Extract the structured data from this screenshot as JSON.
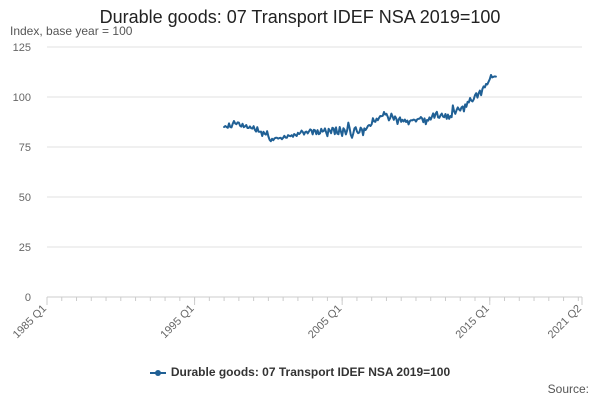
{
  "chart_data": {
    "type": "line",
    "title": "Durable goods: 07 Transport IDEF NSA 2019=100",
    "ylabel": "Index, base year = 100",
    "xlabel": "",
    "ylim": [
      0,
      125
    ],
    "yticks": [
      0,
      25,
      50,
      75,
      100,
      125
    ],
    "xlim": [
      "1985 Q1",
      "2021 Q2"
    ],
    "xticks": [
      "1985 Q1",
      "1995 Q1",
      "2005 Q1",
      "2015 Q1",
      "2021 Q2"
    ],
    "grid": true,
    "legend_position": "bottom",
    "series": [
      {
        "name": "Durable goods: 07 Transport IDEF NSA 2019=100",
        "color": "#206095",
        "frequency": "monthly",
        "start": "1997-01",
        "values": [
          85,
          85.5,
          85,
          84.6,
          86.8,
          85,
          84.8,
          86.6,
          88,
          86.8,
          86.4,
          87.3,
          87.2,
          85.6,
          85.2,
          86.6,
          84.9,
          85.3,
          86,
          84.5,
          84.5,
          85.3,
          84.4,
          84.2,
          85.4,
          83.6,
          82.7,
          84.9,
          82.6,
          82.6,
          82.7,
          80.5,
          82.6,
          81.6,
          81.2,
          82.9,
          80.3,
          78.6,
          77.9,
          79.1,
          78.4,
          79.3,
          79.6,
          79.6,
          79.2,
          79.5,
          79.6,
          78.9,
          79.6,
          80.6,
          79.7,
          79.6,
          80.9,
          80.6,
          80.4,
          80.9,
          80.1,
          81.5,
          81,
          80.5,
          82.1,
          81.5,
          82.1,
          83.2,
          82.5,
          81.2,
          82.5,
          82.7,
          81.8,
          82.8,
          83.8,
          83.4,
          81.3,
          83.6,
          83.3,
          81.4,
          83.4,
          81.4,
          81.8,
          84.1,
          82.7,
          83,
          84.3,
          82.3,
          80.4,
          84.1,
          83.2,
          81.9,
          84.6,
          84.3,
          81.4,
          84.8,
          81.7,
          81.4,
          85,
          82.7,
          80.5,
          84.4,
          83.5,
          81.3,
          83.2,
          87.2,
          84.6,
          81.1,
          79.6,
          81.7,
          84.3,
          84.9,
          82.8,
          81.9,
          82.3,
          84.7,
          83.9,
          80.9,
          84.3,
          83.5,
          84.4,
          85.6,
          86,
          85.5,
          86.4,
          89.4,
          87.8,
          87.6,
          89.2,
          88.4,
          89.6,
          90.5,
          90.4,
          90.6,
          92.5,
          91.2,
          91.6,
          90.2,
          88.3,
          89.4,
          91.7,
          90.2,
          88.6,
          90.3,
          89.2,
          86.5,
          88.8,
          89.8,
          87.6,
          88.6,
          87.8,
          88.7,
          87.5,
          88.2,
          86.3,
          87.9,
          88.4,
          88.3,
          88.7,
          88.6,
          87.7,
          88.8,
          89.1,
          89.2,
          90,
          89.3,
          87.4,
          89.3,
          86.4,
          88.5,
          88.2,
          89.8,
          88.7,
          90.2,
          91.8,
          89.6,
          91.7,
          92.6,
          89.8,
          89.6,
          90.9,
          91.7,
          90.2,
          89.9,
          91.5,
          89.1,
          91.2,
          89.1,
          90.5,
          89.9,
          95.8,
          92.9,
          91.6,
          93.4,
          94.8,
          93.8,
          93.2,
          94.8,
          95.3,
          92.8,
          96.3,
          95.1,
          97.6,
          97.3,
          99.5,
          98.2,
          97.8,
          98.9,
          100.9,
          101.9,
          99.7,
          101.9,
          103.2,
          100.9,
          103.9,
          105.3,
          104.8,
          106.5,
          106.3,
          107.6,
          108.9,
          111,
          109.8,
          110.1,
          110.3,
          110.2
        ]
      }
    ]
  },
  "source_label": "Source:"
}
